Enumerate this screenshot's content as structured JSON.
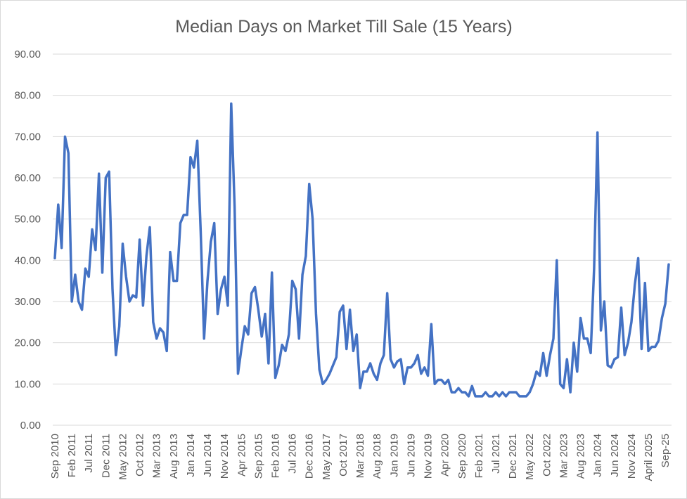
{
  "chart_data": {
    "type": "line",
    "title": "Median Days on Market Till Sale (15 Years)",
    "xlabel": "",
    "ylabel": "",
    "ylim": [
      0,
      90
    ],
    "yticks": [
      "0.00",
      "10.00",
      "20.00",
      "30.00",
      "40.00",
      "50.00",
      "60.00",
      "70.00",
      "80.00",
      "90.00"
    ],
    "grid": true,
    "legend": "none",
    "series_color": "#4472c4",
    "x_tick_labels": [
      "Sep 2010",
      "Feb 2011",
      "Jul 2011",
      "Dec 2011",
      "May 2012",
      "Oct 2012",
      "Mar 2013",
      "Aug 2013",
      "Jan 2014",
      "Jun 2014",
      "Nov 2014",
      "Apr 2015",
      "Sep 2015",
      "Feb 2016",
      "Jul 2016",
      "Dec 2016",
      "May 2017",
      "Oct 2017",
      "Mar 2018",
      "Aug 2018",
      "Jan 2019",
      "Jun 2019",
      "Nov 2019",
      "Apr 2020",
      "Sep 2020",
      "Feb 2021",
      "Jul 2021",
      "Dec 2021",
      "May 2022",
      "Oct 2022",
      "Mar 2023",
      "Aug 2023",
      "Jan 2024",
      "Jun 2024",
      "Nov 2024",
      "April 2025",
      "Sep-25"
    ],
    "x_tick_index": [
      0,
      5,
      10,
      15,
      20,
      25,
      30,
      35,
      40,
      45,
      50,
      55,
      60,
      65,
      70,
      75,
      80,
      85,
      90,
      95,
      100,
      105,
      110,
      115,
      120,
      125,
      130,
      135,
      140,
      145,
      150,
      155,
      160,
      165,
      170,
      175,
      180
    ],
    "series": [
      {
        "name": "Median Days on Market",
        "values": [
          40.5,
          53.5,
          43,
          70,
          66,
          30,
          36.5,
          30,
          28,
          38,
          36,
          47.5,
          42.5,
          61,
          37,
          60,
          61.5,
          33,
          17,
          24,
          44,
          36,
          30,
          31.5,
          31,
          45,
          29,
          41,
          48,
          25,
          21,
          23.5,
          22.5,
          18,
          42,
          35,
          35,
          49,
          51,
          51,
          65,
          62.5,
          69,
          47,
          21,
          35,
          44.5,
          49,
          27,
          33,
          36,
          29,
          78,
          53,
          12.5,
          18.5,
          24,
          22,
          32,
          33.5,
          28,
          21.5,
          27,
          15,
          37,
          11.5,
          14.5,
          19.5,
          18,
          22,
          35,
          33,
          21,
          36.5,
          41,
          58.5,
          50,
          27,
          13.5,
          10,
          11,
          12.5,
          14.5,
          16.5,
          27.5,
          29,
          18.5,
          28,
          18,
          22,
          9,
          13,
          13,
          15,
          12.5,
          11,
          15,
          17,
          32,
          16,
          14,
          15.5,
          16,
          10,
          14,
          14,
          15,
          17,
          12.5,
          14,
          12,
          24.5,
          10,
          11,
          11,
          10,
          11,
          8,
          8,
          9,
          8,
          8,
          7,
          9.5,
          7,
          7,
          7,
          8,
          7,
          7,
          8,
          7,
          8,
          7,
          8,
          8,
          8,
          7,
          7,
          7,
          8,
          10,
          13,
          12,
          17.5,
          12,
          17,
          21,
          40,
          10,
          9,
          16,
          8,
          20,
          13,
          26,
          21,
          21,
          17.5,
          38,
          71,
          23,
          30,
          14.5,
          14,
          16,
          16.5,
          28.5,
          17,
          20,
          25,
          34,
          40.5,
          18.5,
          34.5,
          18,
          19,
          19,
          20.5,
          26,
          29.5,
          39
        ]
      }
    ]
  }
}
